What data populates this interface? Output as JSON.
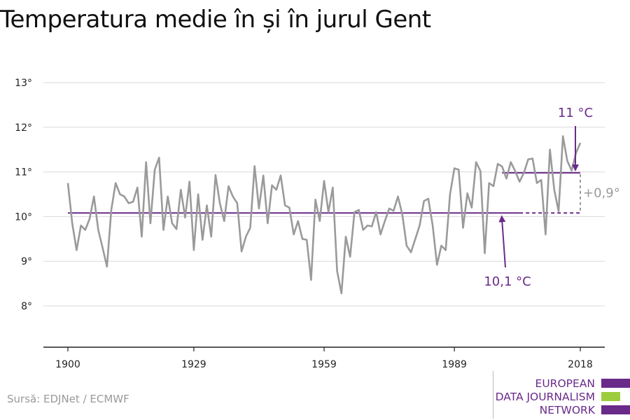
{
  "title": "Temperatura medie în și în jurul Gent",
  "source": "Sursă: EDJNet / ECMWF",
  "logo": {
    "lines": [
      "EUROPEAN",
      "DATA JOURNALISM",
      "NETWORK"
    ]
  },
  "colors": {
    "line": "#9a9a9a",
    "purple": "#6a2a8a",
    "green": "#9ccc3c",
    "grid": "#d9d9d9"
  },
  "chart_data": {
    "type": "line",
    "title": "Temperatura medie în și în jurul Gent",
    "xlabel": "",
    "ylabel": "",
    "xlim": [
      1900,
      2018
    ],
    "ylim": [
      7,
      13
    ],
    "xticks": [
      1900,
      1929,
      1959,
      1989,
      2018
    ],
    "xtick_labels": [
      "1900",
      "1929",
      "1959",
      "1989",
      "2018"
    ],
    "yticks": [
      8,
      9,
      10,
      11,
      12,
      13
    ],
    "ytick_labels": [
      "8°",
      "9°",
      "10°",
      "11°",
      "12°",
      "13°"
    ],
    "grid": true,
    "x": [
      1900,
      1901,
      1902,
      1903,
      1904,
      1905,
      1906,
      1907,
      1908,
      1909,
      1910,
      1911,
      1912,
      1913,
      1914,
      1915,
      1916,
      1917,
      1918,
      1919,
      1920,
      1921,
      1922,
      1923,
      1924,
      1925,
      1926,
      1927,
      1928,
      1929,
      1930,
      1931,
      1932,
      1933,
      1934,
      1935,
      1936,
      1937,
      1938,
      1939,
      1940,
      1941,
      1942,
      1943,
      1944,
      1945,
      1946,
      1947,
      1948,
      1949,
      1950,
      1951,
      1952,
      1953,
      1954,
      1955,
      1956,
      1957,
      1958,
      1959,
      1960,
      1961,
      1962,
      1963,
      1964,
      1965,
      1966,
      1967,
      1968,
      1969,
      1970,
      1971,
      1972,
      1973,
      1974,
      1975,
      1976,
      1977,
      1978,
      1979,
      1980,
      1981,
      1982,
      1983,
      1984,
      1985,
      1986,
      1987,
      1988,
      1989,
      1990,
      1991,
      1992,
      1993,
      1994,
      1995,
      1996,
      1997,
      1998,
      1999,
      2000,
      2001,
      2002,
      2003,
      2004,
      2005,
      2006,
      2007,
      2008,
      2009,
      2010,
      2011,
      2012,
      2013,
      2014,
      2015,
      2016,
      2017,
      2018
    ],
    "values": [
      10.75,
      9.85,
      9.25,
      9.8,
      9.7,
      9.95,
      10.45,
      9.7,
      9.3,
      8.88,
      10.15,
      10.75,
      10.5,
      10.45,
      10.3,
      10.33,
      10.65,
      9.55,
      11.22,
      9.85,
      11.05,
      11.32,
      9.7,
      10.45,
      9.85,
      9.72,
      10.6,
      9.98,
      10.78,
      9.25,
      10.5,
      9.48,
      10.25,
      9.55,
      10.93,
      10.3,
      9.9,
      10.68,
      10.45,
      10.3,
      9.22,
      9.55,
      9.75,
      11.13,
      10.18,
      10.92,
      9.85,
      10.7,
      10.6,
      10.92,
      10.25,
      10.2,
      9.6,
      9.9,
      9.5,
      9.48,
      8.58,
      10.38,
      9.9,
      10.8,
      10.1,
      10.65,
      8.78,
      8.28,
      9.55,
      9.1,
      10.1,
      10.15,
      9.7,
      9.8,
      9.78,
      10.1,
      9.6,
      9.9,
      10.18,
      10.13,
      10.45,
      10.05,
      9.35,
      9.2,
      9.5,
      9.8,
      10.35,
      10.4,
      9.8,
      8.92,
      9.35,
      9.25,
      10.5,
      11.08,
      11.05,
      9.75,
      10.52,
      10.2,
      11.22,
      11.02,
      9.18,
      10.75,
      10.68,
      11.18,
      11.12,
      10.85,
      11.22,
      11.02,
      10.78,
      10.98,
      11.28,
      11.3,
      10.75,
      10.82,
      9.6,
      11.5,
      10.6,
      10.12,
      11.8,
      11.25,
      11.03,
      11.42,
      11.65
    ],
    "series": [
      {
        "name": "",
        "values": "see values"
      }
    ],
    "reference_lines": [
      {
        "label": "10,1 °C",
        "value": 10.08,
        "solid_from": 1900,
        "solid_to": 2004,
        "dashed_to": 2018
      },
      {
        "label": "11 °C",
        "value": 10.98,
        "solid_from": 2000,
        "solid_to": 2018
      }
    ],
    "difference_label": "+0,9°"
  }
}
